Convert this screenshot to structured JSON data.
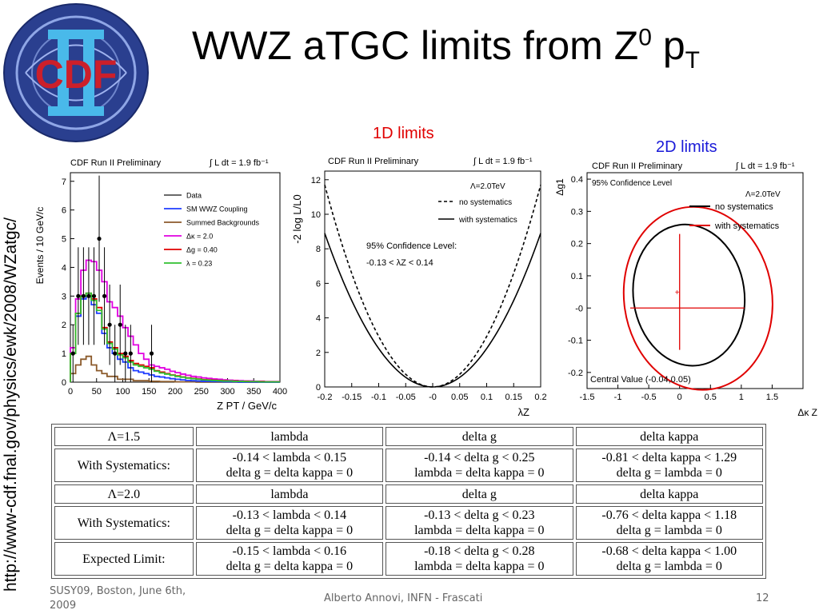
{
  "slide": {
    "title_main": "WWZ aTGC limits from Z",
    "title_sup": "0",
    "title_tail": " p",
    "title_sub": "T",
    "url": "http://www-cdf.fnal.gov/physics/ewk/2008/WZatgc/",
    "label_1d": "1D limits",
    "label_2d": "2D limits",
    "footer_left_1": "SUSY09, Boston, June 6th,",
    "footer_left_2": "2009",
    "footer_center": "Alberto Annovi, INFN - Frascati",
    "footer_right": "12",
    "logo_text": "CDF",
    "colors": {
      "title": "#000000",
      "label_1d": "#e00000",
      "label_2d": "#1a1ad8"
    }
  },
  "chart_data": [
    {
      "type": "bar",
      "header_left": "CDF Run II Preliminary",
      "header_right": "∫ L dt = 1.9 fb⁻¹",
      "xlabel": "Z P_T / GeV/c",
      "ylabel": "Events / 10 GeV/c",
      "xlim": [
        0,
        400
      ],
      "ylim": [
        0,
        7.3
      ],
      "x_ticks": [
        0,
        50,
        100,
        150,
        200,
        250,
        300,
        350,
        400
      ],
      "y_ticks": [
        0,
        1,
        2,
        3,
        4,
        5,
        6,
        7
      ],
      "legend_position": "top-right",
      "bin_width": 10,
      "series": [
        {
          "name": "Summed Backgrounds",
          "color": "#8b5a2b",
          "values": [
            0.3,
            0.6,
            0.8,
            0.9,
            0.6,
            0.4,
            0.3,
            0.2,
            0.2,
            0.1,
            0.1,
            0.1,
            0.05,
            0.05,
            0.05,
            0.03,
            0.03,
            0.02,
            0.02,
            0.02,
            0.01,
            0.01,
            0.01,
            0.01,
            0,
            0,
            0,
            0,
            0,
            0,
            0,
            0,
            0,
            0,
            0,
            0,
            0,
            0,
            0,
            0
          ]
        },
        {
          "name": "SM WWZ Coupling",
          "color": "#1f3dff",
          "values": [
            1.0,
            2.3,
            2.9,
            3.0,
            2.7,
            2.4,
            1.7,
            1.2,
            1.0,
            0.8,
            0.7,
            0.5,
            0.4,
            0.35,
            0.3,
            0.25,
            0.2,
            0.18,
            0.15,
            0.12,
            0.1,
            0.08,
            0.06,
            0.05,
            0.04,
            0.03,
            0.03,
            0.02,
            0.02,
            0.01,
            0.01,
            0.01,
            0,
            0,
            0,
            0,
            0,
            0,
            0,
            0
          ]
        },
        {
          "name": "Δκ = 2.0",
          "color": "#e000e0",
          "values": [
            1.2,
            2.9,
            3.9,
            4.25,
            4.2,
            3.9,
            3.5,
            2.8,
            2.6,
            2.3,
            1.9,
            1.6,
            1.3,
            1.0,
            0.8,
            0.6,
            0.55,
            0.5,
            0.45,
            0.38,
            0.33,
            0.28,
            0.24,
            0.2,
            0.18,
            0.15,
            0.13,
            0.11,
            0.1,
            0.08,
            0.07,
            0.06,
            0.05,
            0.04,
            0.04,
            0.03,
            0.03,
            0.02,
            0.02,
            0.02
          ]
        },
        {
          "name": "Δg = 0.40",
          "color": "#e00000",
          "values": [
            1.0,
            2.4,
            3.0,
            3.1,
            2.9,
            2.6,
            1.9,
            1.4,
            1.2,
            1.0,
            0.9,
            0.75,
            0.65,
            0.6,
            0.55,
            0.5,
            0.4,
            0.35,
            0.3,
            0.25,
            0.22,
            0.18,
            0.15,
            0.13,
            0.11,
            0.09,
            0.08,
            0.07,
            0.06,
            0.05,
            0.04,
            0.04,
            0.03,
            0.03,
            0.02,
            0.02,
            0.02,
            0.01,
            0.01,
            0.01
          ]
        },
        {
          "name": "λ = 0.23",
          "color": "#30c030",
          "values": [
            1.0,
            2.4,
            3.0,
            3.1,
            2.85,
            2.5,
            1.85,
            1.35,
            1.15,
            0.95,
            0.85,
            0.7,
            0.6,
            0.55,
            0.5,
            0.45,
            0.38,
            0.32,
            0.28,
            0.24,
            0.2,
            0.17,
            0.14,
            0.12,
            0.1,
            0.08,
            0.07,
            0.06,
            0.05,
            0.04,
            0.04,
            0.03,
            0.03,
            0.02,
            0.02,
            0.02,
            0.01,
            0.01,
            0.01,
            0.01
          ]
        }
      ],
      "data_points": {
        "name": "Data",
        "x": [
          5,
          15,
          25,
          35,
          45,
          55,
          65,
          75,
          85,
          95,
          105,
          115,
          125,
          135,
          145,
          155
        ],
        "y": [
          1,
          3,
          3,
          3,
          3,
          5,
          3,
          2,
          1,
          2,
          1,
          1,
          0,
          0,
          0,
          1
        ],
        "err": [
          1,
          1.7,
          1.7,
          1.7,
          1.7,
          2.2,
          1.7,
          1.4,
          1,
          1.4,
          1,
          1,
          0,
          0,
          0,
          1
        ]
      },
      "legend": [
        "Data",
        "SM WWZ Coupling",
        "Summed Backgrounds",
        "Δκ = 2.0",
        "Δg = 0.40",
        "λ = 0.23"
      ]
    },
    {
      "type": "line",
      "header_left": "CDF Run II Preliminary",
      "header_right": "∫ L dt = 1.9 fb⁻¹",
      "lambda_note": "Λ=2.0TeV",
      "xlabel": "λZ",
      "ylabel": "-2 log L/L0",
      "xlim": [
        -0.2,
        0.2
      ],
      "ylim": [
        0,
        12.5
      ],
      "x_ticks": [
        -0.2,
        -0.15,
        -0.1,
        -0.05,
        0,
        0.05,
        0.1,
        0.15,
        0.2
      ],
      "x_tick_labels": [
        "-0.2",
        "-0.15",
        "-0.1",
        "-0.05",
        "-0",
        "0.05",
        "0.1",
        "0.15",
        "0.2"
      ],
      "y_ticks": [
        0,
        2,
        4,
        6,
        8,
        10,
        12
      ],
      "annotation_1": "95% Confidence Level:",
      "annotation_2": "-0.13 < λZ < 0.14",
      "series": [
        {
          "name": "no systematics",
          "style": "dashed",
          "x": [
            -0.2,
            -0.15,
            -0.1,
            -0.05,
            0,
            0.05,
            0.1,
            0.15,
            0.2
          ],
          "y": [
            11.7,
            6.6,
            3.0,
            0.75,
            0.0,
            0.75,
            3.0,
            6.6,
            11.7
          ]
        },
        {
          "name": "with systematics",
          "style": "solid",
          "x": [
            -0.2,
            -0.15,
            -0.1,
            -0.05,
            0,
            0.05,
            0.1,
            0.15,
            0.2
          ],
          "y": [
            8.9,
            5.0,
            2.25,
            0.56,
            0.0,
            0.56,
            2.25,
            5.0,
            8.9
          ]
        }
      ]
    },
    {
      "type": "scatter",
      "header_left": "CDF Run II Preliminary",
      "header_right": "∫ L dt = 1.9 fb⁻¹",
      "subheader": "95% Confidence Level",
      "lambda_note": "Λ=2.0TeV",
      "xlabel": "Δκ Z",
      "ylabel": "Δg1",
      "xlim": [
        -1.5,
        2.0
      ],
      "ylim": [
        -0.25,
        0.42
      ],
      "x_ticks": [
        -1.5,
        -1,
        -0.5,
        0,
        0.5,
        1,
        1.5
      ],
      "x_tick_labels": [
        "-1.5",
        "-1",
        "-0.5",
        "0",
        "0.5",
        "1",
        "1.5"
      ],
      "y_ticks": [
        -0.2,
        -0.1,
        0,
        0.1,
        0.2,
        0.3,
        0.4
      ],
      "y_tick_labels": [
        "-0.2",
        "-0.1",
        "-0",
        "0.1",
        "0.2",
        "0.3",
        "0.4"
      ],
      "central_value": {
        "x": -0.04,
        "y": 0.05
      },
      "central_value_label": "Central Value (-0.04,0.05)",
      "series": [
        {
          "name": "no systematics",
          "color": "#000000",
          "contour": {
            "cx": 0.15,
            "cy": 0.04,
            "rx": 0.9,
            "ry": 0.22
          }
        },
        {
          "name": "with systematics",
          "color": "#e00000",
          "contour": {
            "cx": 0.3,
            "cy": 0.03,
            "rx": 1.2,
            "ry": 0.285
          }
        }
      ],
      "cross_arms": {
        "x": [
          -0.8,
          1.05
        ],
        "y": [
          -0.13,
          0.23
        ]
      }
    }
  ],
  "table": {
    "rows": [
      [
        "Λ=1.5",
        "lambda",
        "delta g",
        "delta kappa"
      ],
      [
        "With Systematics:",
        "-0.14 < lambda < 0.15\ndelta g = delta kappa = 0",
        "-0.14 < delta g < 0.25\nlambda = delta kappa = 0",
        "-0.81 < delta kappa < 1.29\ndelta g = lambda = 0"
      ],
      [
        "Λ=2.0",
        "lambda",
        "delta g",
        "delta kappa"
      ],
      [
        "With Systematics:",
        "-0.13 < lambda < 0.14\ndelta g = delta kappa = 0",
        "-0.13 < delta g < 0.23\nlambda = delta kappa = 0",
        "-0.76 < delta kappa < 1.18\ndelta g = lambda = 0"
      ],
      [
        "Expected Limit:",
        "-0.15 < lambda < 0.16\ndelta g = delta kappa = 0",
        "-0.18 < delta g < 0.28\nlambda = delta kappa = 0",
        "-0.68 < delta kappa < 1.00\ndelta g = lambda = 0"
      ]
    ]
  }
}
